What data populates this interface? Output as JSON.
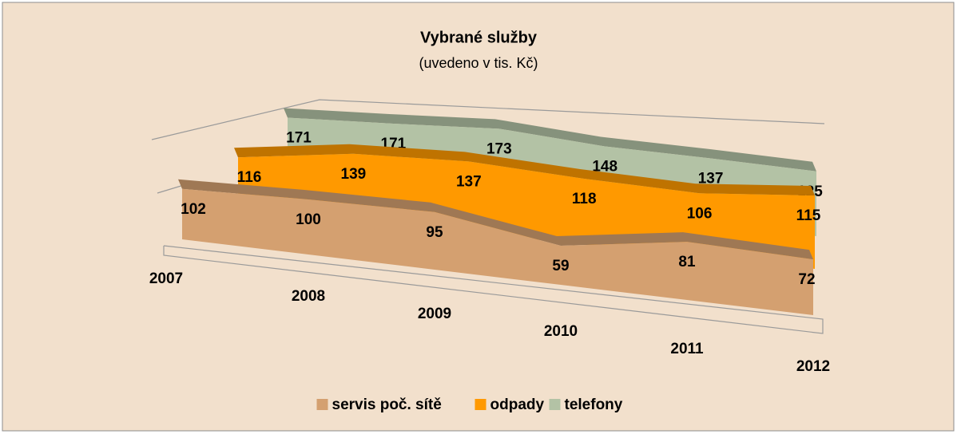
{
  "chart_data": {
    "type": "area3d",
    "title": "Vybrané služby",
    "subtitle": "(uvedeno v tis. Kč)",
    "categories": [
      "2007",
      "2008",
      "2009",
      "2010",
      "2011",
      "2012"
    ],
    "ylim": [
      0,
      200
    ],
    "legend": "bottom",
    "series": [
      {
        "name": "servis poč. sítě",
        "color": "#d4a070",
        "values": [
          102,
          100,
          95,
          59,
          81,
          72
        ]
      },
      {
        "name": "odpady",
        "color": "#ff9900",
        "values": [
          116,
          139,
          137,
          118,
          106,
          115
        ]
      },
      {
        "name": "telefony",
        "color": "#b3c2a5",
        "values": [
          171,
          171,
          173,
          148,
          137,
          125
        ]
      }
    ]
  }
}
